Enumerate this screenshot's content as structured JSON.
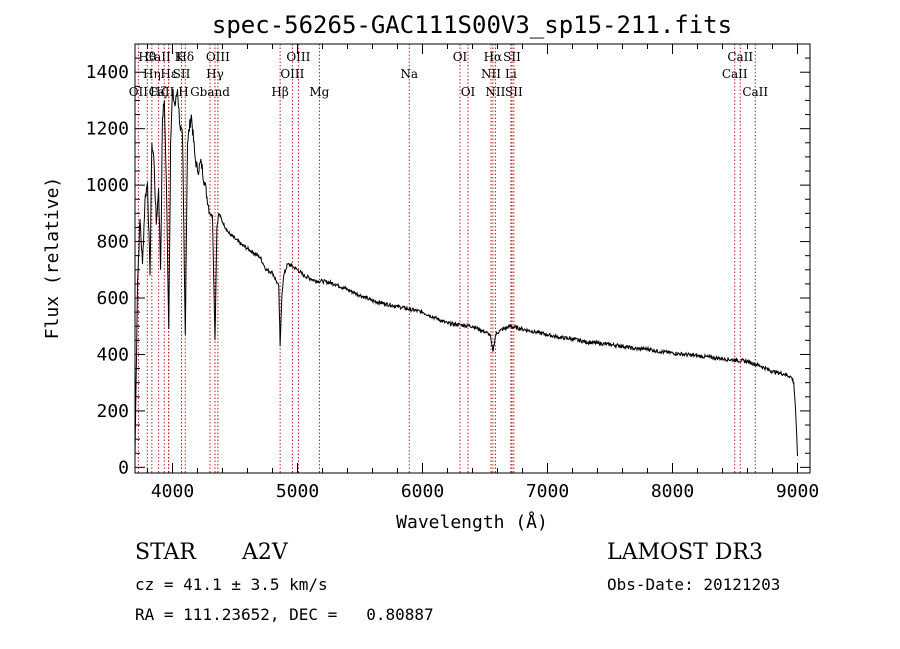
{
  "chart_data": {
    "type": "line",
    "title": "spec-56265-GAC111S00V3_sp15-211.fits",
    "xlabel": "Wavelength (Å)",
    "ylabel": "Flux (relative)",
    "xlim": [
      3700,
      9100
    ],
    "ylim": [
      -20,
      1500
    ],
    "xticks": [
      4000,
      5000,
      6000,
      7000,
      8000,
      9000
    ],
    "xtick_labels": [
      "4000",
      "5000",
      "6000",
      "7000",
      "8000",
      "9000"
    ],
    "yticks": [
      0,
      200,
      400,
      600,
      800,
      1000,
      1200,
      1400
    ],
    "ytick_labels": [
      "0",
      "200",
      "400",
      "600",
      "800",
      "1000",
      "1200",
      "1400"
    ],
    "series": [
      {
        "name": "spectrum",
        "x": [
          3700,
          3720,
          3740,
          3760,
          3780,
          3800,
          3820,
          3835,
          3850,
          3870,
          3889,
          3905,
          3920,
          3935,
          3950,
          3970,
          3985,
          4000,
          4020,
          4040,
          4060,
          4080,
          4102,
          4120,
          4150,
          4180,
          4200,
          4230,
          4260,
          4300,
          4320,
          4340,
          4355,
          4370,
          4400,
          4450,
          4500,
          4550,
          4600,
          4650,
          4700,
          4750,
          4800,
          4830,
          4850,
          4861,
          4875,
          4890,
          4920,
          4950,
          5000,
          5050,
          5100,
          5150,
          5200,
          5300,
          5400,
          5500,
          5600,
          5700,
          5800,
          5900,
          6000,
          6100,
          6200,
          6300,
          6400,
          6500,
          6540,
          6563,
          6585,
          6620,
          6700,
          6800,
          6900,
          7000,
          7100,
          7200,
          7300,
          7400,
          7500,
          7600,
          7700,
          7800,
          7900,
          8000,
          8100,
          8200,
          8300,
          8400,
          8500,
          8600,
          8700,
          8800,
          8900,
          8950,
          8970,
          8985,
          9000
        ],
        "y": [
          40,
          650,
          880,
          720,
          950,
          1010,
          680,
          1150,
          1100,
          860,
          990,
          700,
          1240,
          1300,
          1020,
          490,
          1150,
          1330,
          1280,
          1340,
          1210,
          1170,
          470,
          1150,
          1250,
          1100,
          1050,
          1080,
          1000,
          900,
          890,
          450,
          850,
          900,
          870,
          830,
          810,
          790,
          775,
          760,
          745,
          700,
          690,
          660,
          640,
          430,
          610,
          680,
          720,
          715,
          700,
          680,
          670,
          660,
          660,
          650,
          630,
          610,
          590,
          580,
          570,
          560,
          550,
          530,
          510,
          505,
          500,
          480,
          470,
          410,
          470,
          485,
          500,
          490,
          480,
          470,
          460,
          455,
          445,
          440,
          435,
          430,
          420,
          420,
          410,
          405,
          400,
          395,
          390,
          385,
          380,
          375,
          360,
          340,
          330,
          320,
          300,
          200,
          40
        ]
      }
    ],
    "annotations": [
      {
        "label": "OII",
        "wavelength": 3727,
        "row": 3
      },
      {
        "label": "Hθ",
        "wavelength": 3798,
        "row": 1
      },
      {
        "label": "Hη",
        "wavelength": 3835,
        "row": 2
      },
      {
        "label": "Hζ",
        "wavelength": 3889,
        "row": 3
      },
      {
        "label": "CaII K",
        "wavelength": 3934,
        "row": 1
      },
      {
        "label": "CaII H",
        "wavelength": 3969,
        "row": 3
      },
      {
        "label": "Hε",
        "wavelength": 3970,
        "row": 2
      },
      {
        "label": "SII",
        "wavelength": 4072,
        "row": 2
      },
      {
        "label": "Hδ",
        "wavelength": 4102,
        "row": 1
      },
      {
        "label": "Gband",
        "wavelength": 4300,
        "row": 3
      },
      {
        "label": "Hγ",
        "wavelength": 4340,
        "row": 2
      },
      {
        "label": "OIII",
        "wavelength": 4363,
        "row": 1
      },
      {
        "label": "Hβ",
        "wavelength": 4861,
        "row": 3
      },
      {
        "label": "OIII",
        "wavelength": 4959,
        "row": 2
      },
      {
        "label": "OIII",
        "wavelength": 5007,
        "row": 1
      },
      {
        "label": "Mg",
        "wavelength": 5175,
        "row": 3
      },
      {
        "label": "Na",
        "wavelength": 5894,
        "row": 2
      },
      {
        "label": "OI",
        "wavelength": 6300,
        "row": 1
      },
      {
        "label": "OI",
        "wavelength": 6364,
        "row": 3
      },
      {
        "label": "NII",
        "wavelength": 6548,
        "row": 2
      },
      {
        "label": "Hα",
        "wavelength": 6563,
        "row": 1
      },
      {
        "label": "NII",
        "wavelength": 6583,
        "row": 3
      },
      {
        "label": "Li",
        "wavelength": 6707,
        "row": 2
      },
      {
        "label": "SII",
        "wavelength": 6716,
        "row": 1
      },
      {
        "label": "SII",
        "wavelength": 6731,
        "row": 3
      },
      {
        "label": "CaII",
        "wavelength": 8498,
        "row": 2
      },
      {
        "label": "CaII",
        "wavelength": 8542,
        "row": 1
      },
      {
        "label": "CaII",
        "wavelength": 8662,
        "row": 3
      }
    ]
  },
  "info": {
    "object_class": "STAR",
    "subclass": "A2V",
    "survey": "LAMOST DR3",
    "cz": "cz = 41.1 ± 3.5 km/s",
    "obs_date": "Obs-Date: 20121203",
    "coords": "RA = 111.23652, DEC =   0.80887"
  },
  "colors": {
    "spectrum": "#000000",
    "line_marker": "#c00000",
    "axis": "#000000",
    "background": "#ffffff"
  }
}
